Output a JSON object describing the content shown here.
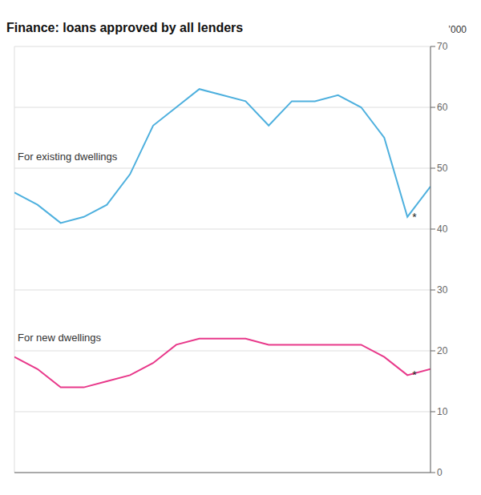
{
  "chart_data": {
    "type": "line",
    "title": "Finance: loans approved by all lenders",
    "y_label": "’000",
    "x": [
      0,
      1,
      2,
      3,
      4,
      5,
      6,
      7,
      8,
      9,
      10,
      11,
      12,
      13,
      14,
      15,
      16,
      17,
      18
    ],
    "series": [
      {
        "name": "For existing dwellings",
        "color": "#4EB0DE",
        "values": [
          46,
          44,
          41,
          42,
          44,
          49,
          57,
          60,
          63,
          62,
          61,
          57,
          61,
          61,
          62,
          60,
          55,
          42,
          47
        ]
      },
      {
        "name": "For new dwellings",
        "color": "#E8388A",
        "values": [
          19,
          17,
          14,
          14,
          15,
          16,
          18,
          21,
          22,
          22,
          22,
          21,
          21,
          21,
          21,
          21,
          19,
          16,
          17
        ]
      }
    ],
    "annotations": [
      {
        "text": "*",
        "x": 17,
        "series": "For existing dwellings"
      },
      {
        "text": "*",
        "x": 17,
        "series": "For new dwellings"
      }
    ],
    "xlim": [
      0,
      18
    ],
    "xticks": [
      3.6,
      7.2,
      10.8,
      14.4
    ],
    "ylim": [
      0,
      70
    ],
    "yticks": [
      0,
      10,
      20,
      30,
      40,
      50,
      60,
      70
    ],
    "grid": true,
    "tick_labels": "y"
  }
}
